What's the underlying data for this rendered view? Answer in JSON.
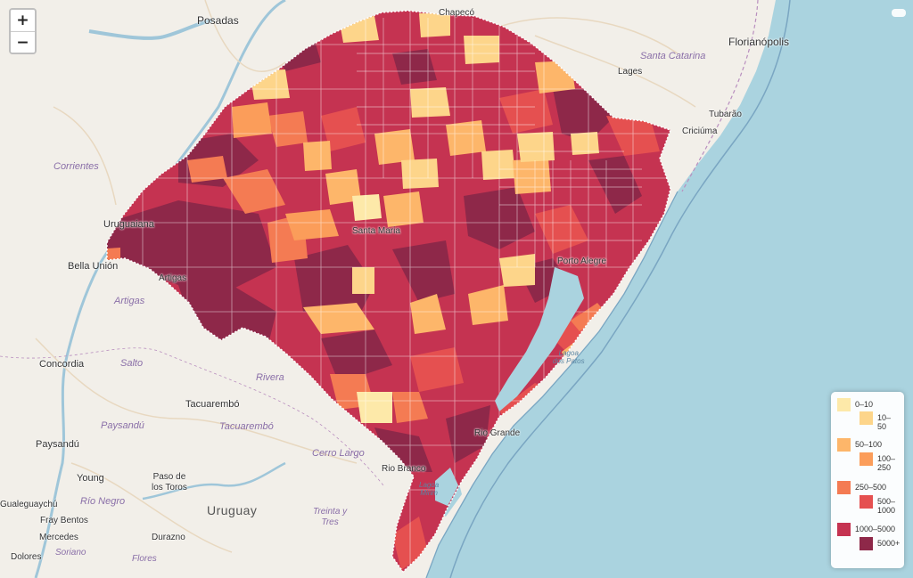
{
  "zoom": {
    "in_label": "+",
    "out_label": "−"
  },
  "labels": {
    "posadas": "Posadas",
    "chapeco": "Chapecó",
    "florianopolis": "Florianópolis",
    "santa_catarina": "Santa Catarina",
    "lages": "Lages",
    "tubarao": "Tubarão",
    "criciuma": "Criciúma",
    "corrientes": "Corrientes",
    "uruguaiana": "Uruguaiana",
    "bella_union": "Bella Unión",
    "artigas_city": "Artigas",
    "artigas_dept": "Artigas",
    "concordia": "Concordia",
    "salto": "Salto",
    "rivera": "Rivera",
    "tacuarembo_city": "Tacuarembó",
    "tacuarembo_dept": "Tacuarembó",
    "paysandu_dept": "Paysandú",
    "paysandu_city": "Paysandú",
    "cerro_largo": "Cerro Largo",
    "young": "Young",
    "paso_de_los_toros": "Paso de\nlos Toros",
    "rio_negro": "Río Negro",
    "uruguay": "Uruguay",
    "treinta_y_tres": "Treinta y\nTres",
    "gualeguaychu": "Gualeguaychú",
    "fray_bentos": "Fray Bentos",
    "mercedes": "Mercedes",
    "soriano": "Soriano",
    "durazno": "Durazno",
    "dolores": "Dolores",
    "flores": "Flores",
    "rio_branco": "Rio Branco",
    "rio_grande": "Rio Grande",
    "santa_maria": "Santa Maria",
    "porto_alegre": "Porto Alegre",
    "lagoa_dos_patos": "Lagoa\ndos Patos",
    "lagoa_mirim": "Lagoa\nMirim"
  },
  "legend": {
    "items": [
      {
        "label": "0–10",
        "color": "#fde9a9"
      },
      {
        "label": "10–50",
        "color": "#fdd58a"
      },
      {
        "label": "50–100",
        "color": "#fdb66a"
      },
      {
        "label": "100–250",
        "color": "#fb9d5a"
      },
      {
        "label": "250–500",
        "color": "#f47b53"
      },
      {
        "label": "500–1000",
        "color": "#e55050"
      },
      {
        "label": "1000–5000",
        "color": "#c53351"
      },
      {
        "label": "5000+",
        "color": "#8e2849"
      }
    ]
  }
}
